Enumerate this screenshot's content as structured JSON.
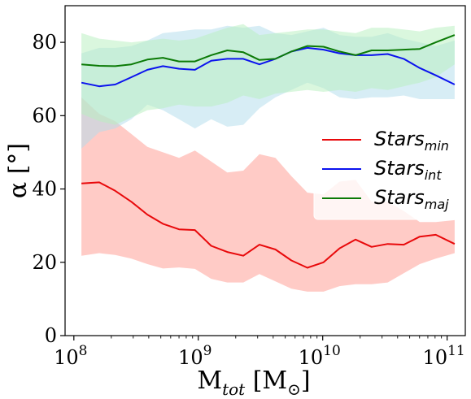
{
  "chart_data": {
    "type": "line",
    "xscale": "log",
    "xlim": [
      85000000,
      140000000000
    ],
    "ylim": [
      0,
      90
    ],
    "xticks": [
      {
        "value": 100000000,
        "base": "10",
        "exp": "8"
      },
      {
        "value": 1000000000,
        "base": "10",
        "exp": "9"
      },
      {
        "value": 10000000000,
        "base": "10",
        "exp": "10"
      },
      {
        "value": 100000000000,
        "base": "10",
        "exp": "11"
      }
    ],
    "yticks": [
      0,
      20,
      40,
      60,
      80
    ],
    "xlabel": {
      "main": "M",
      "sub": "tot",
      "unit_open": " [M",
      "unit_sub": "⊙",
      "unit_close": "]"
    },
    "ylabel": "α [°]",
    "legend_position": "center-right",
    "x": [
      115000000,
      160000000,
      215000000,
      290000000,
      390000000,
      520000000,
      700000000,
      940000000,
      1270000000,
      1710000000,
      2300000000,
      3100000000,
      4170000000,
      5600000000,
      7540000000,
      10150000000,
      13660000000,
      18380000000,
      24730000000,
      33280000000,
      44790000000,
      60270000000,
      81100000000,
      115000000000
    ],
    "series": [
      {
        "name": "Stars",
        "name_sub": "min",
        "color": "#e8090b",
        "band_color": "#ff9b92",
        "values": [
          41.5,
          41.8,
          39.5,
          36.5,
          33.0,
          30.5,
          29.0,
          28.8,
          24.5,
          22.8,
          21.8,
          24.8,
          23.5,
          20.5,
          18.5,
          20.0,
          23.8,
          26.2,
          24.2,
          25.0,
          24.8,
          27.0,
          27.5,
          25.0
        ],
        "upper": [
          65.0,
          60.5,
          58.5,
          55.0,
          51.5,
          50.0,
          48.5,
          50.5,
          47.5,
          44.5,
          45.0,
          49.5,
          48.5,
          43.5,
          39.0,
          38.5,
          42.0,
          42.5,
          36.5,
          36.5,
          34.0,
          31.0,
          31.0,
          31.5
        ],
        "lower": [
          21.8,
          22.5,
          22.0,
          21.0,
          19.5,
          18.3,
          18.6,
          18.2,
          15.5,
          14.5,
          14.5,
          16.8,
          14.8,
          12.8,
          12.0,
          12.0,
          13.5,
          14.0,
          14.0,
          14.5,
          17.0,
          19.5,
          21.0,
          22.5
        ]
      },
      {
        "name": "Stars",
        "name_sub": "int",
        "color": "#0b12ee",
        "band_color": "#b3dcec",
        "values": [
          69.0,
          68.0,
          68.5,
          70.5,
          72.5,
          73.5,
          72.8,
          72.5,
          75.0,
          75.5,
          75.5,
          74.0,
          75.5,
          77.5,
          78.5,
          78.0,
          77.0,
          76.5,
          76.5,
          76.8,
          75.5,
          73.0,
          71.0,
          68.5
        ],
        "upper": [
          77.0,
          78.5,
          78.5,
          79.0,
          80.5,
          82.5,
          83.0,
          83.5,
          83.5,
          84.5,
          84.0,
          84.5,
          82.5,
          82.0,
          83.0,
          84.0,
          82.0,
          81.5,
          81.5,
          82.5,
          81.0,
          80.0,
          79.0,
          80.5
        ],
        "lower": [
          51.0,
          55.5,
          56.5,
          59.0,
          63.0,
          61.5,
          59.0,
          56.5,
          59.0,
          57.0,
          57.5,
          62.0,
          65.0,
          67.0,
          69.0,
          67.5,
          65.0,
          64.5,
          65.0,
          65.0,
          65.5,
          64.5,
          64.5,
          64.5
        ]
      },
      {
        "name": "Stars",
        "name_sub": "maj",
        "color": "#0b7a06",
        "band_color": "#b8efc0",
        "values": [
          74.0,
          73.6,
          73.5,
          74.0,
          75.3,
          75.8,
          74.8,
          74.8,
          76.5,
          77.8,
          77.3,
          75.2,
          75.5,
          77.5,
          79.0,
          78.8,
          77.5,
          76.5,
          77.8,
          77.8,
          78.0,
          78.2,
          80.0,
          82.0
        ],
        "upper": [
          82.5,
          81.0,
          80.5,
          80.0,
          80.5,
          81.0,
          80.5,
          81.0,
          82.5,
          84.0,
          85.0,
          82.0,
          82.5,
          83.0,
          83.5,
          83.5,
          83.0,
          82.5,
          84.0,
          84.0,
          83.5,
          83.0,
          84.0,
          84.5
        ],
        "lower": [
          60.5,
          58.5,
          57.5,
          59.5,
          61.5,
          62.0,
          63.0,
          62.5,
          62.5,
          63.5,
          65.5,
          64.5,
          66.0,
          66.5,
          67.0,
          66.5,
          67.0,
          66.5,
          67.5,
          67.0,
          68.0,
          69.0,
          70.5,
          74.0
        ]
      }
    ]
  }
}
